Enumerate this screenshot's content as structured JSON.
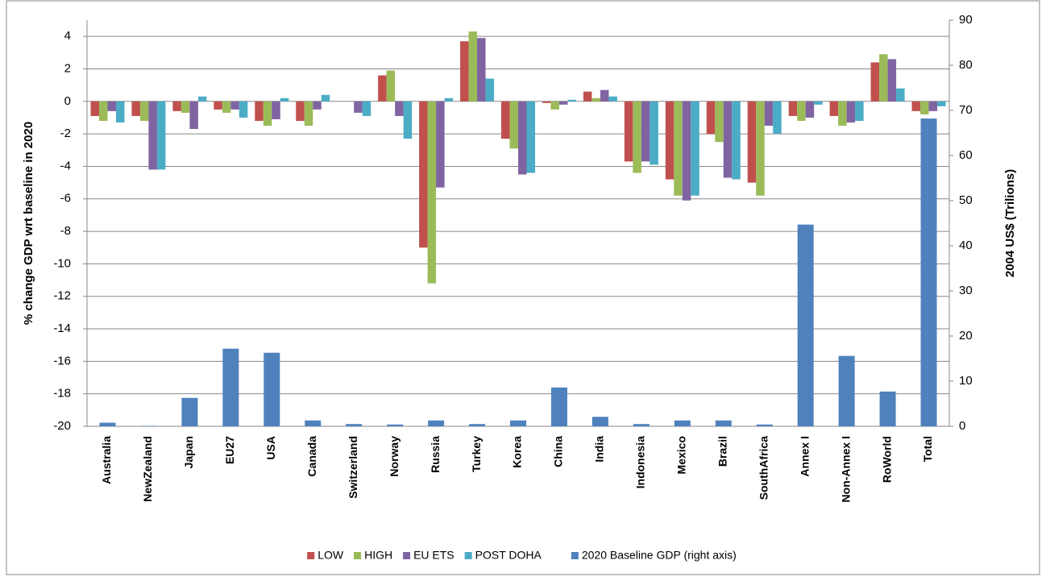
{
  "chart_data": {
    "type": "bar",
    "categories": [
      "Australia",
      "NewZealand",
      "Japan",
      "EU27",
      "USA",
      "Canada",
      "Switzerland",
      "Norway",
      "Russia",
      "Turkey",
      "Korea",
      "China",
      "India",
      "Indonesia",
      "Mexico",
      "Brazil",
      "SouthAfrica",
      "Annex I",
      "Non-Annex I",
      "RoWorld",
      "Total"
    ],
    "series": [
      {
        "name": "LOW",
        "color": "#c0504d",
        "values": [
          -0.9,
          -0.9,
          -0.6,
          -0.5,
          -1.2,
          -1.2,
          0,
          1.6,
          -9.0,
          3.7,
          -2.3,
          -0.1,
          0.6,
          -3.7,
          -4.8,
          -2.0,
          -5.0,
          -0.9,
          -0.9,
          2.4,
          -0.6
        ]
      },
      {
        "name": "HIGH",
        "color": "#9bbb59",
        "values": [
          -1.2,
          -1.2,
          -0.7,
          -0.7,
          -1.5,
          -1.5,
          0,
          1.9,
          -11.2,
          4.3,
          -2.9,
          -0.5,
          0.2,
          -4.4,
          -5.8,
          -2.5,
          -5.8,
          -1.2,
          -1.5,
          2.9,
          -0.8
        ]
      },
      {
        "name": "EU ETS",
        "color": "#8064a2",
        "values": [
          -0.6,
          -4.2,
          -1.7,
          -0.5,
          -1.1,
          -0.5,
          -0.7,
          -0.9,
          -5.3,
          3.9,
          -4.5,
          -0.2,
          0.7,
          -3.7,
          -6.1,
          -4.7,
          -1.5,
          -1.0,
          -1.3,
          2.6,
          -0.6
        ]
      },
      {
        "name": "POST DOHA",
        "color": "#4bacc6",
        "values": [
          -1.3,
          -4.2,
          0.3,
          -1.0,
          0.2,
          0.4,
          -0.9,
          -2.3,
          0.2,
          1.4,
          -4.4,
          0.1,
          0.3,
          -3.9,
          -5.8,
          -4.8,
          -2.0,
          -0.2,
          -1.2,
          0.8,
          -0.3
        ]
      },
      {
        "name": "2020  Baseline GDP (right axis)",
        "color": "#4f81bd",
        "axis": "y2",
        "values": [
          0.8,
          0.1,
          6.3,
          17.2,
          16.3,
          1.3,
          0.5,
          0.4,
          1.3,
          0.5,
          1.3,
          8.6,
          2.1,
          0.5,
          1.3,
          1.3,
          0.4,
          44.7,
          15.6,
          7.7,
          68.2
        ]
      }
    ],
    "y_label": "% change GDP wrt baseline in 2020",
    "y2_label": "2004 US$ (Trilions)",
    "ylim": [
      -20,
      5
    ],
    "yticks": [
      -20,
      -18,
      -16,
      -14,
      -12,
      -10,
      -8,
      -6,
      -4,
      -2,
      0,
      2,
      4
    ],
    "y2lim": [
      0,
      90
    ],
    "y2ticks": [
      0,
      10,
      20,
      30,
      40,
      50,
      60,
      70,
      80,
      90
    ],
    "grid": true,
    "legend": "bottom"
  }
}
